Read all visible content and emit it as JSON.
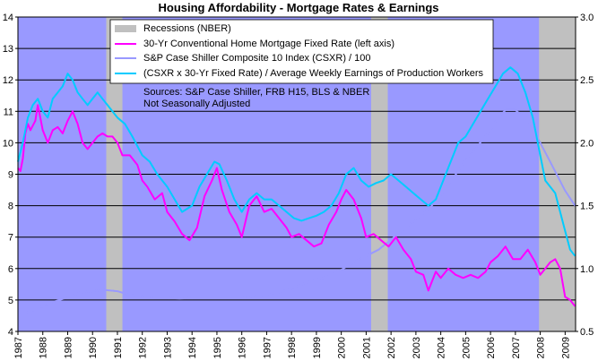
{
  "chart_data": {
    "type": "line",
    "title": "Housing Affordability - Mortgage Rates & Earnings",
    "plot_background": "#9999ff",
    "recession_color": "#c0c0c0",
    "x_range": [
      1987,
      2009.42
    ],
    "x_ticks": [
      "1987",
      "1988",
      "1989",
      "1990",
      "1991",
      "1992",
      "1993",
      "1994",
      "1995",
      "1996",
      "1997",
      "1998",
      "1999",
      "2000",
      "2001",
      "2002",
      "2003",
      "2004",
      "2005",
      "2006",
      "2007",
      "2008",
      "2009"
    ],
    "left_axis": {
      "range": [
        4,
        14
      ],
      "ticks": [
        "4",
        "5",
        "6",
        "7",
        "8",
        "9",
        "10",
        "11",
        "12",
        "13",
        "14"
      ]
    },
    "right_axis": {
      "range": [
        0.5,
        3.0
      ],
      "ticks": [
        "0.5",
        "1.0",
        "1.5",
        "2.0",
        "2.5",
        "3.0"
      ]
    },
    "recessions": [
      {
        "start": 1990.55,
        "end": 1991.2
      },
      {
        "start": 2001.2,
        "end": 2001.87
      },
      {
        "start": 2007.95,
        "end": 2009.42
      }
    ],
    "legend": [
      {
        "label": "Recessions (NBER)",
        "kind": "box",
        "color": "#c0c0c0"
      },
      {
        "label": "30-Yr Conventional Home Mortgage Fixed Rate (left axis)",
        "kind": "line",
        "color": "#ff00ff"
      },
      {
        "label": "S&P Case Shiller Composite 10 Index (CSXR) / 100",
        "kind": "line",
        "color": "#9999ff"
      },
      {
        "label": "(CSXR x 30-Yr Fixed Rate) / Average Weekly Earnings of Production Workers",
        "kind": "line",
        "color": "#00ccff"
      }
    ],
    "notes": [
      "Sources: S&P Case Shiller, FRB H15, BLS & NBER",
      "Not Seasonally Adjusted"
    ],
    "series": [
      {
        "name": "30-Yr Conventional Home Mortgage Fixed Rate (left axis)",
        "axis": "left",
        "color": "#ff00ff",
        "x": [
          1987.0,
          1987.1,
          1987.2,
          1987.3,
          1987.4,
          1987.5,
          1987.7,
          1987.8,
          1988.0,
          1988.2,
          1988.4,
          1988.6,
          1988.8,
          1989.0,
          1989.2,
          1989.4,
          1989.6,
          1989.8,
          1990.0,
          1990.2,
          1990.4,
          1990.6,
          1990.8,
          1991.0,
          1991.2,
          1991.5,
          1991.8,
          1992.0,
          1992.2,
          1992.5,
          1992.8,
          1993.0,
          1993.3,
          1993.6,
          1993.9,
          1994.2,
          1994.5,
          1994.8,
          1995.0,
          1995.2,
          1995.5,
          1995.8,
          1996.0,
          1996.3,
          1996.6,
          1996.9,
          1997.2,
          1997.5,
          1997.8,
          1998.0,
          1998.3,
          1998.6,
          1998.9,
          1999.2,
          1999.5,
          1999.8,
          2000.0,
          2000.2,
          2000.5,
          2000.8,
          2001.0,
          2001.3,
          2001.6,
          2001.9,
          2002.2,
          2002.5,
          2002.8,
          2003.0,
          2003.3,
          2003.5,
          2003.8,
          2004.0,
          2004.3,
          2004.6,
          2004.9,
          2005.2,
          2005.5,
          2005.8,
          2006.0,
          2006.3,
          2006.6,
          2006.9,
          2007.2,
          2007.5,
          2007.8,
          2008.0,
          2008.2,
          2008.4,
          2008.6,
          2008.8,
          2009.0,
          2009.2,
          2009.4
        ],
        "values": [
          9.2,
          9.1,
          9.5,
          10.3,
          10.6,
          10.4,
          10.7,
          11.2,
          10.4,
          10.0,
          10.4,
          10.5,
          10.3,
          10.7,
          11.0,
          10.6,
          10.0,
          9.8,
          10.0,
          10.2,
          10.3,
          10.2,
          10.2,
          10.0,
          9.6,
          9.6,
          9.3,
          8.8,
          8.6,
          8.2,
          8.4,
          7.8,
          7.5,
          7.1,
          6.9,
          7.3,
          8.3,
          8.8,
          9.2,
          8.5,
          7.8,
          7.4,
          7.0,
          8.0,
          8.3,
          7.8,
          7.9,
          7.6,
          7.3,
          7.0,
          7.1,
          6.9,
          6.7,
          6.8,
          7.4,
          7.8,
          8.2,
          8.5,
          8.2,
          7.6,
          7.0,
          7.1,
          6.9,
          6.7,
          7.0,
          6.6,
          6.3,
          5.9,
          5.8,
          5.3,
          5.9,
          5.7,
          6.0,
          5.8,
          5.7,
          5.8,
          5.7,
          5.9,
          6.2,
          6.4,
          6.7,
          6.3,
          6.3,
          6.6,
          6.2,
          5.8,
          6.0,
          6.2,
          6.3,
          6.0,
          5.1,
          5.0,
          4.8
        ]
      },
      {
        "name": "S&P Case Shiller Composite 10 Index (CSXR) / 100",
        "axis": "right",
        "color": "#9999ff",
        "x": [
          1987.0,
          1987.5,
          1988.0,
          1988.5,
          1989.0,
          1989.5,
          1990.0,
          1990.5,
          1991.0,
          1991.5,
          1992.0,
          1992.5,
          1993.0,
          1993.5,
          1994.0,
          1994.5,
          1995.0,
          1995.5,
          1996.0,
          1996.5,
          1997.0,
          1997.5,
          1998.0,
          1998.5,
          1999.0,
          1999.5,
          2000.0,
          2000.5,
          2001.0,
          2001.5,
          2002.0,
          2002.5,
          2003.0,
          2003.5,
          2004.0,
          2004.5,
          2005.0,
          2005.5,
          2006.0,
          2006.3,
          2006.6,
          2007.0,
          2007.5,
          2008.0,
          2008.5,
          2009.0,
          2009.4
        ],
        "values": [
          0.63,
          0.66,
          0.7,
          0.74,
          0.77,
          0.81,
          0.82,
          0.83,
          0.82,
          0.79,
          0.78,
          0.77,
          0.77,
          0.76,
          0.77,
          0.77,
          0.77,
          0.77,
          0.77,
          0.78,
          0.79,
          0.81,
          0.84,
          0.88,
          0.91,
          0.94,
          0.99,
          1.05,
          1.1,
          1.15,
          1.23,
          1.31,
          1.39,
          1.47,
          1.58,
          1.72,
          1.86,
          1.98,
          2.1,
          2.2,
          2.26,
          2.26,
          2.18,
          2.0,
          1.81,
          1.62,
          1.5
        ]
      },
      {
        "name": "(CSXR x 30-Yr Fixed Rate) / Average Weekly Earnings of Production Workers",
        "axis": "right",
        "color": "#00ccff",
        "x": [
          1987.0,
          1987.2,
          1987.4,
          1987.6,
          1987.8,
          1988.0,
          1988.2,
          1988.4,
          1988.6,
          1988.8,
          1989.0,
          1989.2,
          1989.4,
          1989.6,
          1989.8,
          1990.0,
          1990.2,
          1990.4,
          1990.6,
          1990.8,
          1991.0,
          1991.3,
          1991.6,
          1992.0,
          1992.3,
          1992.6,
          1993.0,
          1993.3,
          1993.6,
          1994.0,
          1994.3,
          1994.6,
          1994.9,
          1995.1,
          1995.4,
          1995.7,
          1996.0,
          1996.3,
          1996.6,
          1996.9,
          1997.2,
          1997.5,
          1997.8,
          1998.1,
          1998.4,
          1998.7,
          1999.0,
          1999.3,
          1999.6,
          1999.9,
          2000.2,
          2000.5,
          2000.8,
          2001.1,
          2001.4,
          2001.7,
          2002.0,
          2002.3,
          2002.6,
          2002.9,
          2003.2,
          2003.5,
          2003.8,
          2004.1,
          2004.4,
          2004.7,
          2005.0,
          2005.3,
          2005.6,
          2005.9,
          2006.2,
          2006.5,
          2006.8,
          2007.1,
          2007.4,
          2007.7,
          2008.0,
          2008.2,
          2008.4,
          2008.6,
          2008.8,
          2009.0,
          2009.2,
          2009.4
        ],
        "values": [
          1.85,
          2.0,
          2.2,
          2.3,
          2.35,
          2.25,
          2.2,
          2.35,
          2.4,
          2.45,
          2.55,
          2.5,
          2.4,
          2.35,
          2.3,
          2.35,
          2.4,
          2.35,
          2.3,
          2.25,
          2.2,
          2.15,
          2.05,
          1.9,
          1.85,
          1.75,
          1.65,
          1.55,
          1.45,
          1.5,
          1.65,
          1.75,
          1.85,
          1.83,
          1.7,
          1.55,
          1.45,
          1.55,
          1.6,
          1.55,
          1.55,
          1.5,
          1.45,
          1.4,
          1.38,
          1.4,
          1.42,
          1.45,
          1.5,
          1.6,
          1.75,
          1.8,
          1.7,
          1.65,
          1.68,
          1.7,
          1.75,
          1.7,
          1.65,
          1.6,
          1.55,
          1.5,
          1.55,
          1.7,
          1.85,
          2.0,
          2.05,
          2.15,
          2.25,
          2.35,
          2.45,
          2.55,
          2.6,
          2.55,
          2.4,
          2.2,
          1.9,
          1.7,
          1.65,
          1.6,
          1.45,
          1.3,
          1.15,
          1.1
        ]
      }
    ]
  }
}
